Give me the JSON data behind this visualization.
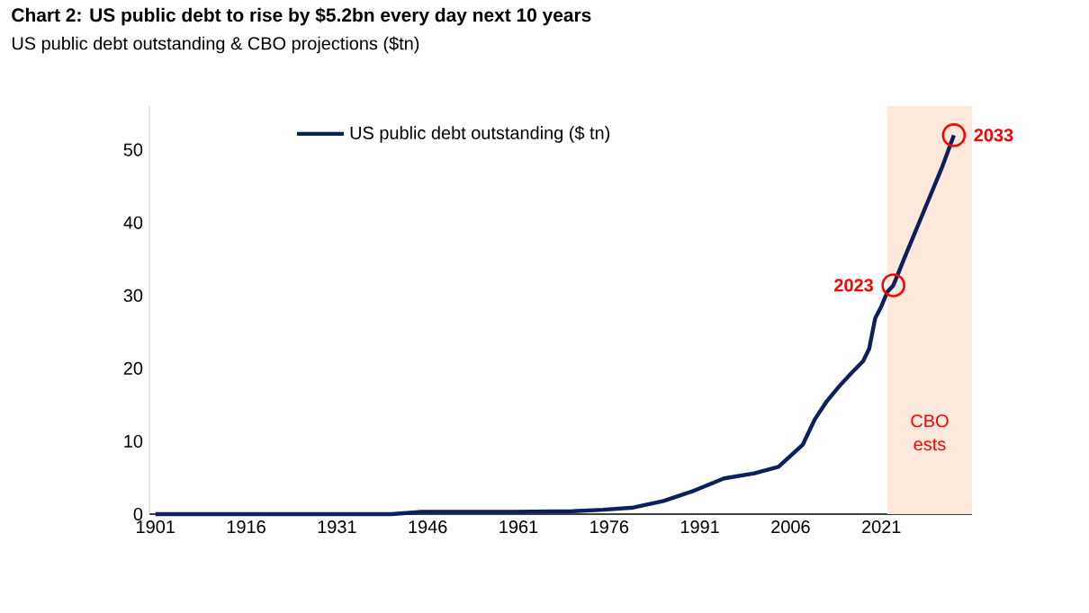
{
  "chart_data": {
    "type": "line",
    "title": "Chart 2: US public debt to rise by $5.2bn every day next 10 years",
    "subtitle": "US public debt outstanding & CBO projections ($tn)",
    "x": [
      1901,
      1916,
      1930,
      1940,
      1945,
      1950,
      1960,
      1970,
      1975,
      1980,
      1985,
      1990,
      1995,
      2000,
      2004,
      2008,
      2010,
      2012,
      2014,
      2016,
      2018,
      2019,
      2020,
      2021,
      2022,
      2023,
      2025,
      2027,
      2029,
      2031,
      2033
    ],
    "series": [
      {
        "name": "US public debt outstanding ($ tn)",
        "color": "#0d1f5c",
        "values": [
          0,
          0,
          0,
          0,
          0.3,
          0.3,
          0.3,
          0.4,
          0.6,
          0.9,
          1.8,
          3.2,
          4.9,
          5.6,
          6.5,
          9.5,
          13.0,
          15.5,
          17.5,
          19.3,
          21.0,
          22.7,
          26.9,
          28.5,
          30.5,
          31.4,
          35.5,
          39.5,
          43.5,
          47.5,
          52
        ]
      }
    ],
    "xlim": [
      1900,
      2036
    ],
    "ylim": [
      0,
      56
    ],
    "xticks": [
      1901,
      1916,
      1931,
      1946,
      1961,
      1976,
      1991,
      2006,
      2021
    ],
    "yticks": [
      0,
      10,
      20,
      30,
      40,
      50
    ],
    "bands": [
      {
        "axis": "x",
        "from": 2022,
        "to": 2036,
        "label": "CBO ests",
        "color": "#fde8dc"
      }
    ],
    "annotations": [
      {
        "text": "2023",
        "x": 2023,
        "y": 31.4
      },
      {
        "text": "2033",
        "x": 2033,
        "y": 52
      }
    ],
    "legend": "top left",
    "grid": false,
    "line_style": "solid",
    "marker": "none"
  }
}
